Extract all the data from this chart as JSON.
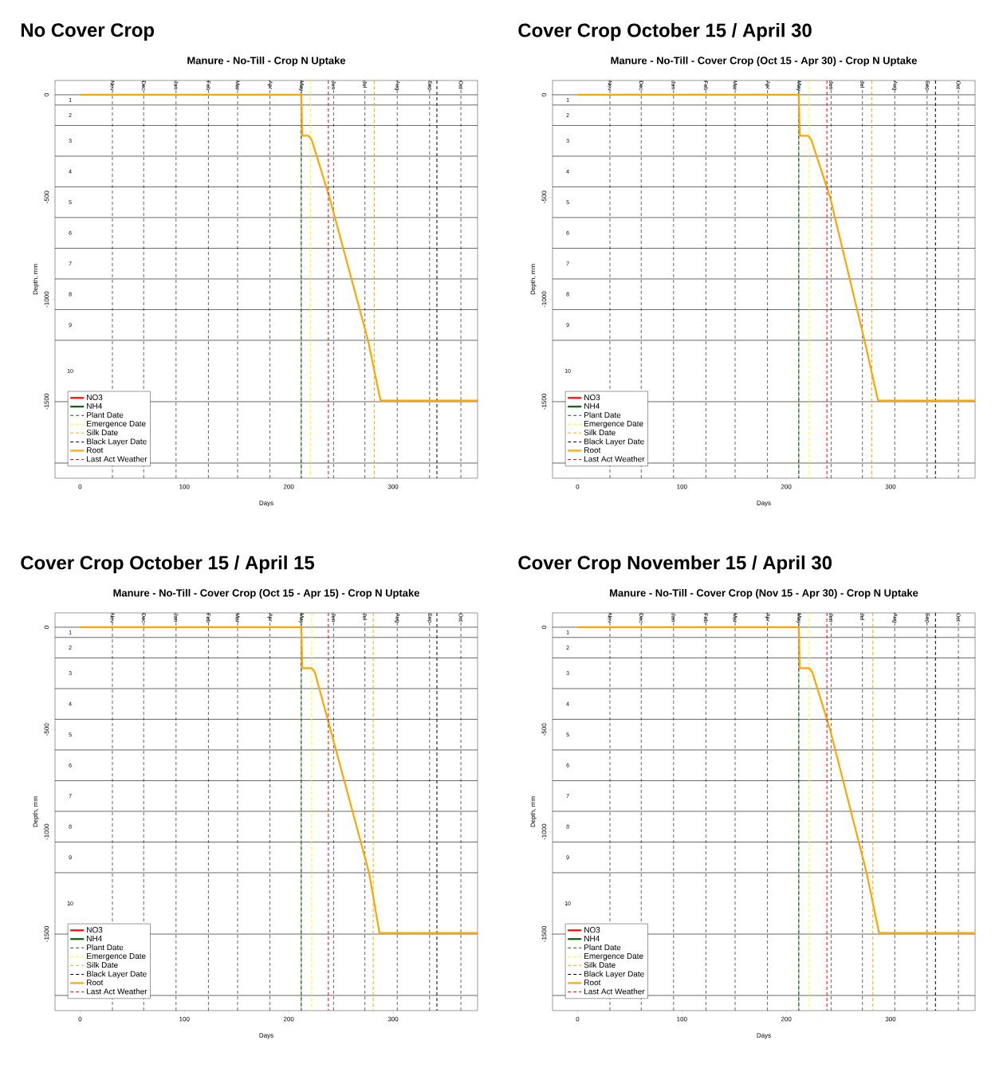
{
  "chart_data": [
    {
      "type": "line",
      "title": "No Cover Crop",
      "subtitle": "Manure - No-Till - Crop N Uptake",
      "xlabel": "Days",
      "ylabel": "Depth, mm",
      "xlim": [
        -24,
        381
      ],
      "ylim": [
        -1874,
        70
      ],
      "xticks": [
        0,
        100,
        200,
        300
      ],
      "yticks": [
        0,
        -500,
        -1000,
        -1500
      ],
      "legend": "bottom left",
      "series": [
        {
          "name": "NO3",
          "color": "#ff0000",
          "line_style": "solid",
          "values": [
            null
          ]
        },
        {
          "name": "NH4",
          "color": "#006400",
          "line_style": "solid",
          "values": [
            null
          ]
        },
        {
          "name": "Plant Date",
          "color": "#006400",
          "line_style": "dashed",
          "x": [
            212,
            212
          ],
          "values": [
            70,
            -1874
          ]
        },
        {
          "name": "Emergence Date",
          "color": "#ffff00",
          "line_style": "dashed",
          "x": [
            221,
            221
          ],
          "values": [
            70,
            -1874
          ]
        },
        {
          "name": "Silk Date",
          "color": "#ffa500",
          "line_style": "dashed",
          "x": [
            282,
            282
          ],
          "values": [
            70,
            -1874
          ]
        },
        {
          "name": "Black Layer Date",
          "color": "#000000",
          "line_style": "dashed",
          "x": [
            342,
            342
          ],
          "values": [
            70,
            -1874
          ]
        },
        {
          "name": "Root",
          "color": "#ffa500",
          "line_style": "solid",
          "x": [
            0,
            212,
            213,
            219,
            222,
            239,
            276,
            288,
            381
          ],
          "values": [
            0,
            0,
            -200,
            -200,
            -220,
            -500,
            -1200,
            -1495,
            -1495
          ]
        },
        {
          "name": "Last Act Weather",
          "color": "#ff0000",
          "line_style": "dashed",
          "x": [
            238,
            238
          ],
          "values": [
            70,
            -1874
          ]
        }
      ],
      "ref_lines": [
        {
          "axis": "x",
          "value": 31,
          "label": "Nov",
          "color": "#000000",
          "line_style": "dashed"
        },
        {
          "axis": "x",
          "value": 61,
          "label": "Dec",
          "color": "#000000",
          "line_style": "dashed"
        },
        {
          "axis": "x",
          "value": 92,
          "label": "Jan",
          "color": "#000000",
          "line_style": "dashed"
        },
        {
          "axis": "x",
          "value": 123,
          "label": "Feb",
          "color": "#000000",
          "line_style": "dashed"
        },
        {
          "axis": "x",
          "value": 151,
          "label": "Mar",
          "color": "#000000",
          "line_style": "dashed"
        },
        {
          "axis": "x",
          "value": 182,
          "label": "Apr",
          "color": "#000000",
          "line_style": "dashed"
        },
        {
          "axis": "x",
          "value": 212,
          "label": "May",
          "color": "#000000",
          "line_style": "dashed"
        },
        {
          "axis": "x",
          "value": 243,
          "label": "Jun",
          "color": "#000000",
          "line_style": "dashed"
        },
        {
          "axis": "x",
          "value": 273,
          "label": "Jul",
          "color": "#000000",
          "line_style": "dashed"
        },
        {
          "axis": "x",
          "value": 304,
          "label": "Aug",
          "color": "#000000",
          "line_style": "dashed"
        },
        {
          "axis": "x",
          "value": 335,
          "label": "Sep",
          "color": "#000000",
          "line_style": "dashed"
        },
        {
          "axis": "x",
          "value": 365,
          "label": "Oct",
          "color": "#000000",
          "line_style": "dashed"
        },
        {
          "axis": "y",
          "value": 0,
          "color": "#000000",
          "line_style": "solid"
        },
        {
          "axis": "y",
          "value": -50,
          "color": "#000000",
          "line_style": "solid"
        },
        {
          "axis": "y",
          "value": -150,
          "color": "#000000",
          "line_style": "solid"
        },
        {
          "axis": "y",
          "value": -300,
          "color": "#000000",
          "line_style": "solid"
        },
        {
          "axis": "y",
          "value": -450,
          "color": "#000000",
          "line_style": "solid"
        },
        {
          "axis": "y",
          "value": -600,
          "color": "#000000",
          "line_style": "solid"
        },
        {
          "axis": "y",
          "value": -750,
          "color": "#000000",
          "line_style": "solid"
        },
        {
          "axis": "y",
          "value": -900,
          "color": "#000000",
          "line_style": "solid"
        },
        {
          "axis": "y",
          "value": -1050,
          "color": "#000000",
          "line_style": "solid"
        },
        {
          "axis": "y",
          "value": -1200,
          "color": "#000000",
          "line_style": "solid"
        },
        {
          "axis": "y",
          "value": -1500,
          "color": "#000000",
          "line_style": "solid"
        },
        {
          "axis": "y",
          "value": -1800,
          "color": "#000000",
          "line_style": "solid"
        }
      ],
      "annotations": [
        "1",
        "2",
        "3",
        "4",
        "5",
        "6",
        "7",
        "8",
        "9",
        "10"
      ]
    },
    {
      "type": "line",
      "title": "Cover Crop October 15 / April 30",
      "subtitle": "Manure - No-Till - Cover Crop (Oct 15 - Apr 30) - Crop N Uptake",
      "xlabel": "Days",
      "ylabel": "Depth, mm",
      "xlim": [
        -24,
        381
      ],
      "ylim": [
        -1874,
        70
      ],
      "xticks": [
        0,
        100,
        200,
        300
      ],
      "yticks": [
        0,
        -500,
        -1000,
        -1500
      ],
      "legend": "bottom left",
      "series": [
        {
          "name": "NO3",
          "color": "#ff0000",
          "line_style": "solid",
          "values": [
            null
          ]
        },
        {
          "name": "NH4",
          "color": "#006400",
          "line_style": "solid",
          "values": [
            null
          ]
        },
        {
          "name": "Plant Date",
          "color": "#006400",
          "line_style": "dashed",
          "x": [
            212,
            212
          ],
          "values": [
            70,
            -1874
          ]
        },
        {
          "name": "Emergence Date",
          "color": "#ffff00",
          "line_style": "dashed",
          "x": [
            222,
            222
          ],
          "values": [
            70,
            -1874
          ]
        },
        {
          "name": "Silk Date",
          "color": "#ffa500",
          "line_style": "dashed",
          "x": [
            282,
            282
          ],
          "values": [
            70,
            -1874
          ]
        },
        {
          "name": "Black Layer Date",
          "color": "#000000",
          "line_style": "dashed",
          "x": [
            343,
            343
          ],
          "values": [
            70,
            -1874
          ]
        },
        {
          "name": "Root",
          "color": "#ffa500",
          "line_style": "solid",
          "x": [
            0,
            212,
            213,
            221,
            224,
            242,
            275,
            288,
            381
          ],
          "values": [
            0,
            0,
            -200,
            -200,
            -220,
            -500,
            -1200,
            -1495,
            -1495
          ]
        },
        {
          "name": "Last Act Weather",
          "color": "#ff0000",
          "line_style": "dashed",
          "x": [
            239,
            239
          ],
          "values": [
            70,
            -1874
          ]
        }
      ],
      "ref_lines": [
        {
          "axis": "x",
          "value": 31,
          "label": "Nov",
          "color": "#000000",
          "line_style": "dashed"
        },
        {
          "axis": "x",
          "value": 61,
          "label": "Dec",
          "color": "#000000",
          "line_style": "dashed"
        },
        {
          "axis": "x",
          "value": 92,
          "label": "Jan",
          "color": "#000000",
          "line_style": "dashed"
        },
        {
          "axis": "x",
          "value": 123,
          "label": "Feb",
          "color": "#000000",
          "line_style": "dashed"
        },
        {
          "axis": "x",
          "value": 151,
          "label": "Mar",
          "color": "#000000",
          "line_style": "dashed"
        },
        {
          "axis": "x",
          "value": 182,
          "label": "Apr",
          "color": "#000000",
          "line_style": "dashed"
        },
        {
          "axis": "x",
          "value": 212,
          "label": "May",
          "color": "#000000",
          "line_style": "dashed"
        },
        {
          "axis": "x",
          "value": 243,
          "label": "Jun",
          "color": "#000000",
          "line_style": "dashed"
        },
        {
          "axis": "x",
          "value": 273,
          "label": "Jul",
          "color": "#000000",
          "line_style": "dashed"
        },
        {
          "axis": "x",
          "value": 304,
          "label": "Aug",
          "color": "#000000",
          "line_style": "dashed"
        },
        {
          "axis": "x",
          "value": 335,
          "label": "Sep",
          "color": "#000000",
          "line_style": "dashed"
        },
        {
          "axis": "x",
          "value": 365,
          "label": "Oct",
          "color": "#000000",
          "line_style": "dashed"
        },
        {
          "axis": "y",
          "value": 0,
          "color": "#000000",
          "line_style": "solid"
        },
        {
          "axis": "y",
          "value": -50,
          "color": "#000000",
          "line_style": "solid"
        },
        {
          "axis": "y",
          "value": -150,
          "color": "#000000",
          "line_style": "solid"
        },
        {
          "axis": "y",
          "value": -300,
          "color": "#000000",
          "line_style": "solid"
        },
        {
          "axis": "y",
          "value": -450,
          "color": "#000000",
          "line_style": "solid"
        },
        {
          "axis": "y",
          "value": -600,
          "color": "#000000",
          "line_style": "solid"
        },
        {
          "axis": "y",
          "value": -750,
          "color": "#000000",
          "line_style": "solid"
        },
        {
          "axis": "y",
          "value": -900,
          "color": "#000000",
          "line_style": "solid"
        },
        {
          "axis": "y",
          "value": -1050,
          "color": "#000000",
          "line_style": "solid"
        },
        {
          "axis": "y",
          "value": -1200,
          "color": "#000000",
          "line_style": "solid"
        },
        {
          "axis": "y",
          "value": -1500,
          "color": "#000000",
          "line_style": "solid"
        },
        {
          "axis": "y",
          "value": -1800,
          "color": "#000000",
          "line_style": "solid"
        }
      ],
      "annotations": [
        "1",
        "2",
        "3",
        "4",
        "5",
        "6",
        "7",
        "8",
        "9",
        "10"
      ]
    },
    {
      "type": "line",
      "title": "Cover Crop October 15 / April 15",
      "subtitle": "Manure - No-Till - Cover Crop (Oct 15 - Apr 15) - Crop N Uptake",
      "xlabel": "Days",
      "ylabel": "Depth, mm",
      "xlim": [
        -24,
        381
      ],
      "ylim": [
        -1874,
        70
      ],
      "xticks": [
        0,
        100,
        200,
        300
      ],
      "yticks": [
        0,
        -500,
        -1000,
        -1500
      ],
      "legend": "bottom left",
      "series": [
        {
          "name": "NO3",
          "color": "#ff0000",
          "line_style": "solid",
          "values": [
            null
          ]
        },
        {
          "name": "NH4",
          "color": "#006400",
          "line_style": "solid",
          "values": [
            null
          ]
        },
        {
          "name": "Plant Date",
          "color": "#006400",
          "line_style": "dashed",
          "x": [
            212,
            212
          ],
          "values": [
            70,
            -1874
          ]
        },
        {
          "name": "Emergence Date",
          "color": "#ffff00",
          "line_style": "dashed",
          "x": [
            222,
            222
          ],
          "values": [
            70,
            -1874
          ]
        },
        {
          "name": "Silk Date",
          "color": "#ffa500",
          "line_style": "dashed",
          "x": [
            281,
            281
          ],
          "values": [
            70,
            -1874
          ]
        },
        {
          "name": "Black Layer Date",
          "color": "#000000",
          "line_style": "dashed",
          "x": [
            342,
            342
          ],
          "values": [
            70,
            -1874
          ]
        },
        {
          "name": "Root",
          "color": "#ffa500",
          "line_style": "solid",
          "x": [
            0,
            212,
            213,
            222,
            225,
            240,
            277,
            287,
            381
          ],
          "values": [
            0,
            0,
            -200,
            -200,
            -220,
            -500,
            -1200,
            -1495,
            -1495
          ]
        },
        {
          "name": "Last Act Weather",
          "color": "#ff0000",
          "line_style": "dashed",
          "x": [
            238,
            238
          ],
          "values": [
            70,
            -1874
          ]
        }
      ],
      "ref_lines": [
        {
          "axis": "x",
          "value": 31,
          "label": "Nov",
          "color": "#000000",
          "line_style": "dashed"
        },
        {
          "axis": "x",
          "value": 61,
          "label": "Dec",
          "color": "#000000",
          "line_style": "dashed"
        },
        {
          "axis": "x",
          "value": 92,
          "label": "Jan",
          "color": "#000000",
          "line_style": "dashed"
        },
        {
          "axis": "x",
          "value": 123,
          "label": "Feb",
          "color": "#000000",
          "line_style": "dashed"
        },
        {
          "axis": "x",
          "value": 151,
          "label": "Mar",
          "color": "#000000",
          "line_style": "dashed"
        },
        {
          "axis": "x",
          "value": 182,
          "label": "Apr",
          "color": "#000000",
          "line_style": "dashed"
        },
        {
          "axis": "x",
          "value": 212,
          "label": "May",
          "color": "#000000",
          "line_style": "dashed"
        },
        {
          "axis": "x",
          "value": 243,
          "label": "Jun",
          "color": "#000000",
          "line_style": "dashed"
        },
        {
          "axis": "x",
          "value": 273,
          "label": "Jul",
          "color": "#000000",
          "line_style": "dashed"
        },
        {
          "axis": "x",
          "value": 304,
          "label": "Aug",
          "color": "#000000",
          "line_style": "dashed"
        },
        {
          "axis": "x",
          "value": 335,
          "label": "Sep",
          "color": "#000000",
          "line_style": "dashed"
        },
        {
          "axis": "x",
          "value": 365,
          "label": "Oct",
          "color": "#000000",
          "line_style": "dashed"
        },
        {
          "axis": "y",
          "value": 0,
          "color": "#000000",
          "line_style": "solid"
        },
        {
          "axis": "y",
          "value": -50,
          "color": "#000000",
          "line_style": "solid"
        },
        {
          "axis": "y",
          "value": -150,
          "color": "#000000",
          "line_style": "solid"
        },
        {
          "axis": "y",
          "value": -300,
          "color": "#000000",
          "line_style": "solid"
        },
        {
          "axis": "y",
          "value": -450,
          "color": "#000000",
          "line_style": "solid"
        },
        {
          "axis": "y",
          "value": -600,
          "color": "#000000",
          "line_style": "solid"
        },
        {
          "axis": "y",
          "value": -750,
          "color": "#000000",
          "line_style": "solid"
        },
        {
          "axis": "y",
          "value": -900,
          "color": "#000000",
          "line_style": "solid"
        },
        {
          "axis": "y",
          "value": -1050,
          "color": "#000000",
          "line_style": "solid"
        },
        {
          "axis": "y",
          "value": -1200,
          "color": "#000000",
          "line_style": "solid"
        },
        {
          "axis": "y",
          "value": -1500,
          "color": "#000000",
          "line_style": "solid"
        },
        {
          "axis": "y",
          "value": -1800,
          "color": "#000000",
          "line_style": "solid"
        }
      ],
      "annotations": [
        "1",
        "2",
        "3",
        "4",
        "5",
        "6",
        "7",
        "8",
        "9",
        "10"
      ]
    },
    {
      "type": "line",
      "title": "Cover Crop November 15 / April 30",
      "subtitle": "Manure - No-Till - Cover Crop (Nov 15 - Apr 30) - Crop N Uptake",
      "xlabel": "Days",
      "ylabel": "Depth, mm",
      "xlim": [
        -24,
        381
      ],
      "ylim": [
        -1874,
        70
      ],
      "xticks": [
        0,
        100,
        200,
        300
      ],
      "yticks": [
        0,
        -500,
        -1000,
        -1500
      ],
      "legend": "bottom left",
      "series": [
        {
          "name": "NO3",
          "color": "#ff0000",
          "line_style": "solid",
          "values": [
            null
          ]
        },
        {
          "name": "NH4",
          "color": "#006400",
          "line_style": "solid",
          "values": [
            null
          ]
        },
        {
          "name": "Plant Date",
          "color": "#006400",
          "line_style": "dashed",
          "x": [
            212,
            212
          ],
          "values": [
            70,
            -1874
          ]
        },
        {
          "name": "Emergence Date",
          "color": "#ffff00",
          "line_style": "dashed",
          "x": [
            222,
            222
          ],
          "values": [
            70,
            -1874
          ]
        },
        {
          "name": "Silk Date",
          "color": "#ffa500",
          "line_style": "dashed",
          "x": [
            283,
            283
          ],
          "values": [
            70,
            -1874
          ]
        },
        {
          "name": "Black Layer Date",
          "color": "#000000",
          "line_style": "dashed",
          "x": [
            343,
            343
          ],
          "values": [
            70,
            -1874
          ]
        },
        {
          "name": "Root",
          "color": "#ffa500",
          "line_style": "solid",
          "x": [
            0,
            212,
            213,
            222,
            225,
            242,
            277,
            289,
            381
          ],
          "values": [
            0,
            0,
            -200,
            -200,
            -220,
            -500,
            -1200,
            -1495,
            -1495
          ]
        },
        {
          "name": "Last Act Weather",
          "color": "#ff0000",
          "line_style": "dashed",
          "x": [
            239,
            239
          ],
          "values": [
            70,
            -1874
          ]
        }
      ],
      "ref_lines": [
        {
          "axis": "x",
          "value": 31,
          "label": "Nov",
          "color": "#000000",
          "line_style": "dashed"
        },
        {
          "axis": "x",
          "value": 61,
          "label": "Dec",
          "color": "#000000",
          "line_style": "dashed"
        },
        {
          "axis": "x",
          "value": 92,
          "label": "Jan",
          "color": "#000000",
          "line_style": "dashed"
        },
        {
          "axis": "x",
          "value": 123,
          "label": "Feb",
          "color": "#000000",
          "line_style": "dashed"
        },
        {
          "axis": "x",
          "value": 151,
          "label": "Mar",
          "color": "#000000",
          "line_style": "dashed"
        },
        {
          "axis": "x",
          "value": 182,
          "label": "Apr",
          "color": "#000000",
          "line_style": "dashed"
        },
        {
          "axis": "x",
          "value": 212,
          "label": "May",
          "color": "#000000",
          "line_style": "dashed"
        },
        {
          "axis": "x",
          "value": 243,
          "label": "Jun",
          "color": "#000000",
          "line_style": "dashed"
        },
        {
          "axis": "x",
          "value": 273,
          "label": "Jul",
          "color": "#000000",
          "line_style": "dashed"
        },
        {
          "axis": "x",
          "value": 304,
          "label": "Aug",
          "color": "#000000",
          "line_style": "dashed"
        },
        {
          "axis": "x",
          "value": 335,
          "label": "Sep",
          "color": "#000000",
          "line_style": "dashed"
        },
        {
          "axis": "x",
          "value": 365,
          "label": "Oct",
          "color": "#000000",
          "line_style": "dashed"
        },
        {
          "axis": "y",
          "value": 0,
          "color": "#000000",
          "line_style": "solid"
        },
        {
          "axis": "y",
          "value": -50,
          "color": "#000000",
          "line_style": "solid"
        },
        {
          "axis": "y",
          "value": -150,
          "color": "#000000",
          "line_style": "solid"
        },
        {
          "axis": "y",
          "value": -300,
          "color": "#000000",
          "line_style": "solid"
        },
        {
          "axis": "y",
          "value": -450,
          "color": "#000000",
          "line_style": "solid"
        },
        {
          "axis": "y",
          "value": -600,
          "color": "#000000",
          "line_style": "solid"
        },
        {
          "axis": "y",
          "value": -750,
          "color": "#000000",
          "line_style": "solid"
        },
        {
          "axis": "y",
          "value": -900,
          "color": "#000000",
          "line_style": "solid"
        },
        {
          "axis": "y",
          "value": -1050,
          "color": "#000000",
          "line_style": "solid"
        },
        {
          "axis": "y",
          "value": -1200,
          "color": "#000000",
          "line_style": "solid"
        },
        {
          "axis": "y",
          "value": -1500,
          "color": "#000000",
          "line_style": "solid"
        },
        {
          "axis": "y",
          "value": -1800,
          "color": "#000000",
          "line_style": "solid"
        }
      ],
      "annotations": [
        "1",
        "2",
        "3",
        "4",
        "5",
        "6",
        "7",
        "8",
        "9",
        "10"
      ]
    }
  ]
}
